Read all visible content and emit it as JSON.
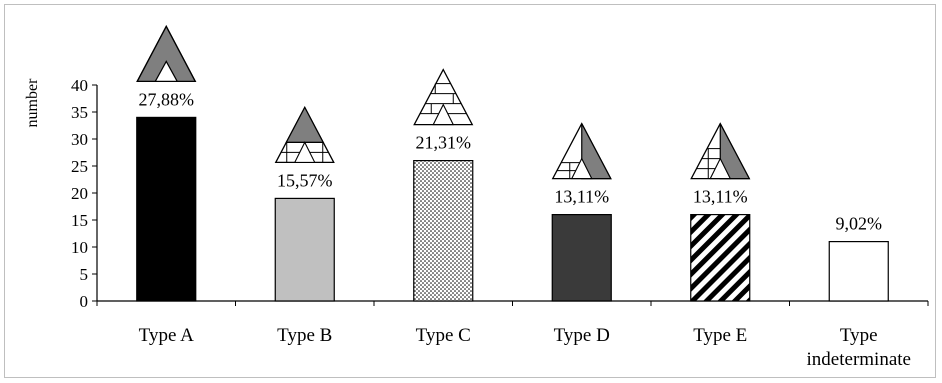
{
  "chart_data": {
    "type": "bar",
    "title": "",
    "xlabel": "",
    "ylabel": "number",
    "ylim": [
      0,
      40
    ],
    "yticks": [
      0,
      5,
      10,
      15,
      20,
      25,
      30,
      35,
      40
    ],
    "grid": false,
    "legend": "none",
    "categories": [
      {
        "lines": [
          "Type A"
        ],
        "value": 34,
        "label": "27,88%",
        "pattern": "solid-black",
        "icon": "triangle-type-a"
      },
      {
        "lines": [
          "Type B"
        ],
        "value": 19,
        "label": "15,57%",
        "pattern": "solid-lightgray",
        "icon": "triangle-type-b"
      },
      {
        "lines": [
          "Type C"
        ],
        "value": 26,
        "label": "21,31%",
        "pattern": "dotted",
        "icon": "triangle-type-c"
      },
      {
        "lines": [
          "Type D"
        ],
        "value": 16,
        "label": "13,11%",
        "pattern": "solid-darkgray",
        "icon": "triangle-type-d"
      },
      {
        "lines": [
          "Type E"
        ],
        "value": 16,
        "label": "13,11%",
        "pattern": "diagonal-stripes",
        "icon": "triangle-type-e"
      },
      {
        "lines": [
          "Type",
          "indeterminate"
        ],
        "value": 11,
        "label": "9,02%",
        "pattern": "white",
        "icon": ""
      }
    ],
    "colors": {
      "solid-black": "#000000",
      "solid-lightgray": "#c0c0c0",
      "solid-darkgray": "#3a3a3a",
      "white": "#ffffff",
      "icon-gray": "#7f7f7f"
    }
  }
}
